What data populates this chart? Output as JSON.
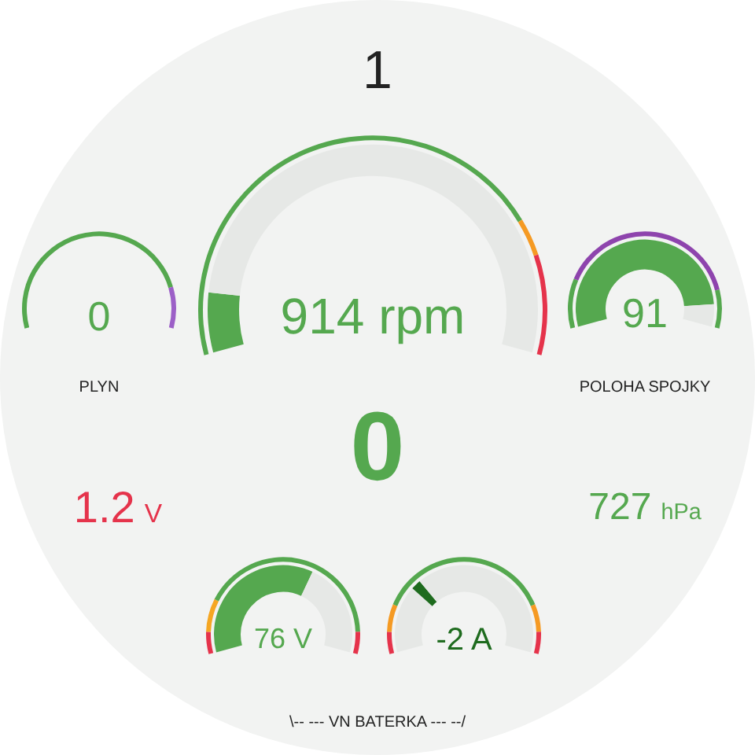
{
  "chart_data": [
    {
      "type": "other",
      "values": [
        1
      ],
      "data_labels": true,
      "color": "#222222"
    },
    {
      "type": "donut",
      "categories": [
        null,
        null,
        null
      ],
      "values": [
        78,
        6,
        16
      ],
      "colors": [
        "#55a84f",
        "#f59a23",
        "#e5334b"
      ]
    },
    {
      "type": "donut",
      "categories": [
        null,
        null
      ],
      "values": [
        10,
        90
      ],
      "colors": [
        "#55a84f",
        "#e6e8e6"
      ],
      "color": "#55a84f",
      "annotations": [
        "914 rpm"
      ]
    },
    {
      "type": "donut",
      "categories": [
        null,
        null
      ],
      "values": [
        85,
        15
      ],
      "colors": [
        "#55a84f",
        "#9c5fc7"
      ]
    },
    {
      "type": "other",
      "values": [
        0
      ],
      "data_labels": true,
      "color": "#55a84f",
      "xlabel": "PLYN"
    },
    {
      "type": "donut",
      "categories": [
        null,
        null,
        null
      ],
      "values": [
        18,
        68,
        14
      ],
      "colors": [
        "#55a84f",
        "#8e44ad",
        "#55a84f"
      ]
    },
    {
      "type": "donut",
      "categories": [
        null,
        null
      ],
      "values": [
        91,
        9
      ],
      "colors": [
        "#55a84f",
        "#e6e8e6"
      ],
      "color": "#55a84f",
      "annotations": [
        "91"
      ],
      "xlabel": "POLOHA SPOJKY"
    },
    {
      "type": "other",
      "values": [
        0
      ],
      "data_labels": true,
      "color": "#55a84f"
    },
    {
      "type": "other",
      "values": [
        1.2
      ],
      "data_labels": true,
      "annotations": [
        "V"
      ],
      "color": "#e5334b"
    },
    {
      "type": "other",
      "values": [
        727
      ],
      "data_labels": true,
      "annotations": [
        "hPa"
      ],
      "color": "#55a84f"
    },
    {
      "type": "donut",
      "categories": [
        null,
        null,
        null,
        null
      ],
      "values": [
        8,
        12,
        72,
        8
      ],
      "colors": [
        "#e5334b",
        "#f5a623",
        "#55a84f",
        "#e5334b"
      ]
    },
    {
      "type": "donut",
      "categories": [
        null,
        null
      ],
      "values": [
        62,
        38
      ],
      "colors": [
        "#55a84f",
        "#e6e8e6"
      ],
      "color": "#55a84f",
      "annotations": [
        "76 V"
      ]
    },
    {
      "type": "donut",
      "categories": [
        null,
        null,
        null,
        null,
        null
      ],
      "values": [
        8,
        10,
        64,
        10,
        8
      ],
      "colors": [
        "#e5334b",
        "#f59a23",
        "#55a84f",
        "#f59a23",
        "#e5334b"
      ]
    },
    {
      "type": "donut",
      "categories": [
        null,
        null,
        null
      ],
      "values": [
        27,
        4,
        69
      ],
      "colors": [
        "#e6e8e6",
        "#1e6b1e",
        "#e6e8e6"
      ],
      "color": "#1e6b1e",
      "annotations": [
        "-2 A"
      ]
    },
    {
      "type": "other",
      "title": "\\-- --- VN BATERKA --- --/"
    }
  ]
}
